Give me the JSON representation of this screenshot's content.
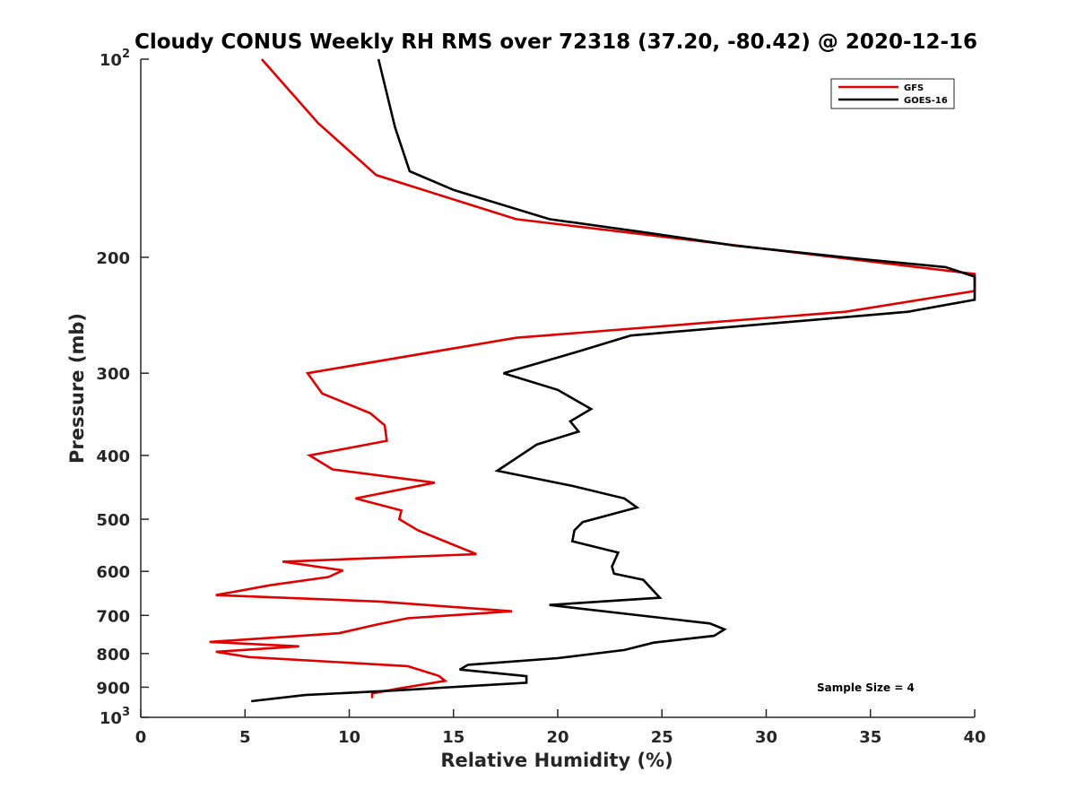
{
  "chart_data": {
    "type": "line",
    "title": "Cloudy CONUS Weekly RH RMS over 72318 (37.20, -80.42) @ 2020-12-16",
    "xlabel": "Relative Humidity (%)",
    "ylabel": "Pressure (mb)",
    "xlim": [
      0,
      40
    ],
    "ylim": [
      100,
      1000
    ],
    "yscale": "log",
    "yreversed": true,
    "grid": false,
    "legend_position": "top-right",
    "x_ticks": [
      "0",
      "5",
      "10",
      "15",
      "20",
      "25",
      "30",
      "35",
      "40"
    ],
    "x_tick_values": [
      0,
      5,
      10,
      15,
      20,
      25,
      30,
      35,
      40
    ],
    "y_ticks": [
      {
        "value": 100,
        "base": "10",
        "exp": "2"
      },
      {
        "value": 200,
        "text": "200"
      },
      {
        "value": 300,
        "text": "300"
      },
      {
        "value": 400,
        "text": "400"
      },
      {
        "value": 500,
        "text": "500"
      },
      {
        "value": 600,
        "text": "600"
      },
      {
        "value": 700,
        "text": "700"
      },
      {
        "value": 800,
        "text": "800"
      },
      {
        "value": 900,
        "text": "900"
      },
      {
        "value": 1000,
        "base": "10",
        "exp": "3"
      }
    ],
    "annotation": "Sample Size = 4",
    "series": [
      {
        "name": "GFS",
        "color": "#e00000",
        "points": [
          [
            5.8,
            100
          ],
          [
            8.5,
            125
          ],
          [
            11.3,
            150
          ],
          [
            18.0,
            175
          ],
          [
            40.0,
            212
          ],
          [
            40.0,
            225
          ],
          [
            33.8,
            242
          ],
          [
            18.0,
            265
          ],
          [
            8.0,
            300
          ],
          [
            8.7,
            322
          ],
          [
            11.0,
            345
          ],
          [
            11.7,
            360
          ],
          [
            11.8,
            380
          ],
          [
            8.1,
            400
          ],
          [
            9.2,
            420
          ],
          [
            14.1,
            440
          ],
          [
            10.3,
            465
          ],
          [
            12.5,
            485
          ],
          [
            12.4,
            500
          ],
          [
            13.3,
            520
          ],
          [
            16.1,
            565
          ],
          [
            6.8,
            580
          ],
          [
            9.7,
            598
          ],
          [
            9.0,
            612
          ],
          [
            6.2,
            630
          ],
          [
            3.6,
            652
          ],
          [
            11.5,
            667
          ],
          [
            17.8,
            690
          ],
          [
            12.8,
            707
          ],
          [
            11.3,
            723
          ],
          [
            9.5,
            745
          ],
          [
            3.3,
            768
          ],
          [
            7.6,
            780
          ],
          [
            3.6,
            795
          ],
          [
            5.2,
            810
          ],
          [
            12.8,
            836
          ],
          [
            14.3,
            865
          ],
          [
            14.6,
            880
          ],
          [
            12.3,
            905
          ],
          [
            11.1,
            920
          ],
          [
            11.1,
            935
          ]
        ]
      },
      {
        "name": "GOES-16",
        "color": "#000000",
        "points": [
          [
            11.4,
            100
          ],
          [
            12.2,
            127
          ],
          [
            12.9,
            148
          ],
          [
            15.0,
            158
          ],
          [
            19.6,
            175
          ],
          [
            24.0,
            183
          ],
          [
            28.5,
            192
          ],
          [
            34.4,
            201
          ],
          [
            38.6,
            207
          ],
          [
            40.0,
            214
          ],
          [
            40.0,
            232
          ],
          [
            36.8,
            242
          ],
          [
            23.5,
            263
          ],
          [
            21.0,
            278
          ],
          [
            17.4,
            300
          ],
          [
            20.0,
            318
          ],
          [
            21.6,
            340
          ],
          [
            20.6,
            355
          ],
          [
            21.0,
            368
          ],
          [
            19.0,
            385
          ],
          [
            17.1,
            422
          ],
          [
            20.7,
            445
          ],
          [
            23.2,
            465
          ],
          [
            23.8,
            480
          ],
          [
            21.2,
            505
          ],
          [
            20.8,
            520
          ],
          [
            20.7,
            540
          ],
          [
            22.9,
            562
          ],
          [
            22.6,
            590
          ],
          [
            22.7,
            605
          ],
          [
            24.1,
            618
          ],
          [
            24.9,
            658
          ],
          [
            19.6,
            675
          ],
          [
            27.3,
            720
          ],
          [
            28.0,
            735
          ],
          [
            27.5,
            752
          ],
          [
            24.6,
            770
          ],
          [
            23.2,
            790
          ],
          [
            20.0,
            813
          ],
          [
            15.7,
            832
          ],
          [
            15.3,
            846
          ],
          [
            18.5,
            866
          ],
          [
            18.5,
            886
          ],
          [
            12.3,
            910
          ],
          [
            7.9,
            925
          ],
          [
            5.3,
            945
          ]
        ]
      }
    ]
  }
}
